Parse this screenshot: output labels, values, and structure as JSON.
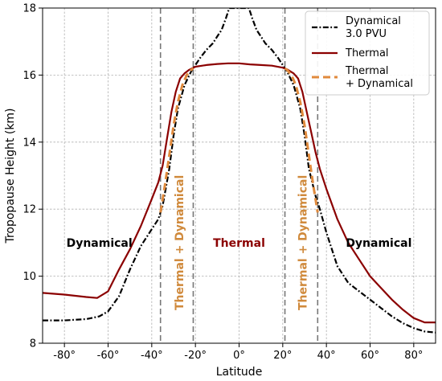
{
  "chart_data": {
    "type": "line",
    "xlabel": "Latitude",
    "ylabel": "Tropopause Height (km)",
    "xlim": [
      -90,
      90
    ],
    "ylim": [
      8,
      18
    ],
    "xticks": [
      -80,
      -60,
      -40,
      -20,
      0,
      20,
      40,
      60,
      80
    ],
    "xtick_labels": [
      "-80°",
      "-60°",
      "-40°",
      "-20°",
      "0°",
      "20°",
      "40°",
      "60°",
      "80°"
    ],
    "yticks": [
      8,
      10,
      12,
      14,
      16,
      18
    ],
    "ytick_labels": [
      "8",
      "10",
      "12",
      "14",
      "16",
      "18"
    ],
    "grid": true,
    "legend_position": "top-right",
    "colors": {
      "dynamical": "#000000",
      "thermal": "#8b0000",
      "combined": "#e08a3c",
      "vlines": "#777777"
    },
    "series": [
      {
        "name": "Dynamical\n3.0 PVU",
        "legend_lines": [
          "Dynamical",
          "3.0 PVU"
        ],
        "style": "dashdot",
        "x": [
          -90,
          -80,
          -70,
          -64,
          -60,
          -55,
          -50,
          -45,
          -40,
          -37,
          -35,
          -32,
          -30,
          -28,
          -25,
          -22,
          -20,
          -18,
          -15,
          -12,
          -10,
          -8,
          -6,
          -5,
          -4.5,
          4.5,
          5,
          6,
          8,
          10,
          12,
          15,
          18,
          20,
          22,
          25,
          28,
          30,
          32,
          35,
          37,
          40,
          45,
          50,
          55,
          60,
          65,
          70,
          75,
          80,
          85,
          90
        ],
        "y": [
          8.68,
          8.68,
          8.72,
          8.8,
          8.95,
          9.4,
          10.2,
          10.9,
          11.4,
          11.7,
          12.1,
          13.2,
          14.2,
          15.0,
          15.7,
          16.1,
          16.3,
          16.5,
          16.75,
          16.95,
          17.15,
          17.35,
          17.7,
          17.9,
          18.0,
          18.0,
          17.9,
          17.7,
          17.35,
          17.15,
          16.95,
          16.75,
          16.5,
          16.3,
          16.1,
          15.7,
          15.0,
          14.2,
          13.2,
          12.4,
          12.0,
          11.3,
          10.3,
          9.8,
          9.55,
          9.3,
          9.05,
          8.8,
          8.6,
          8.45,
          8.35,
          8.32
        ]
      },
      {
        "name": "Thermal",
        "legend_lines": [
          "Thermal"
        ],
        "style": "solid",
        "x": [
          -90,
          -80,
          -70,
          -65,
          -60,
          -55,
          -50,
          -45,
          -40,
          -37,
          -35,
          -33,
          -31,
          -29,
          -27,
          -25,
          -23,
          -20,
          -15,
          -10,
          -5,
          0,
          5,
          10,
          15,
          20,
          22,
          25,
          27,
          29,
          31,
          33,
          35,
          37,
          40,
          45,
          50,
          55,
          60,
          65,
          70,
          75,
          80,
          85,
          90
        ],
        "y": [
          9.5,
          9.45,
          9.38,
          9.35,
          9.55,
          10.2,
          10.8,
          11.5,
          12.3,
          12.8,
          13.3,
          14.1,
          14.9,
          15.5,
          15.9,
          16.05,
          16.15,
          16.25,
          16.3,
          16.33,
          16.35,
          16.35,
          16.32,
          16.3,
          16.28,
          16.22,
          16.17,
          16.05,
          15.9,
          15.5,
          14.9,
          14.3,
          13.7,
          13.2,
          12.6,
          11.7,
          11.0,
          10.5,
          10.0,
          9.65,
          9.3,
          9.0,
          8.75,
          8.62,
          8.62
        ]
      },
      {
        "name": "Thermal\n+ Dynamical",
        "legend_lines": [
          "Thermal",
          "+ Dynamical"
        ],
        "style": "dashed",
        "x": [
          -36,
          -34,
          -32,
          -30,
          -28,
          -26,
          -24,
          -22,
          -21,
          21,
          22,
          24,
          26,
          28,
          30,
          32,
          34,
          36
        ],
        "y": [
          11.9,
          12.7,
          13.6,
          14.5,
          15.2,
          15.7,
          16.0,
          16.15,
          16.2,
          16.2,
          16.15,
          16.0,
          15.7,
          15.2,
          14.5,
          13.6,
          12.7,
          11.9
        ]
      }
    ],
    "vlines": [
      -36,
      -21,
      21,
      36
    ],
    "annotations": [
      {
        "text": "Dynamical",
        "x": -64,
        "y": 11.0,
        "color": "#000000",
        "rotation": 0
      },
      {
        "text": "Thermal",
        "x": 0,
        "y": 11.0,
        "color": "#8b0000",
        "rotation": 0
      },
      {
        "text": "Dynamical",
        "x": 64,
        "y": 11.0,
        "color": "#000000",
        "rotation": 0
      },
      {
        "text": "Thermal + Dynamical",
        "x": -27.5,
        "y": 11.0,
        "color": "#d08a3c",
        "rotation": -90
      },
      {
        "text": "Thermal + Dynamical",
        "x": 29,
        "y": 11.0,
        "color": "#d08a3c",
        "rotation": -90
      }
    ]
  }
}
